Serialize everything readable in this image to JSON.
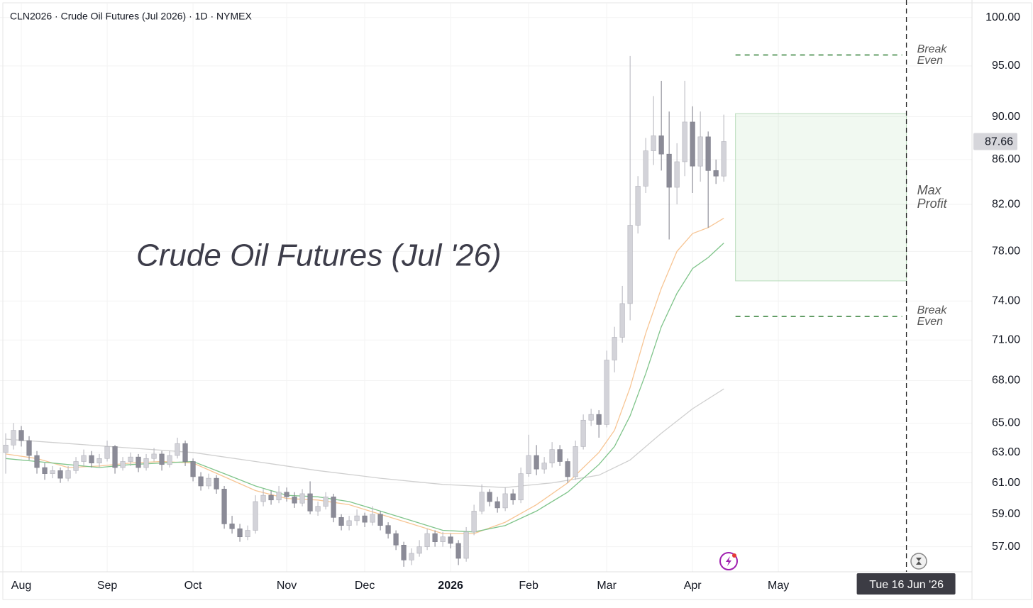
{
  "chart_data": {
    "type": "candlestick",
    "title": "CLN2026 · Crude Oil Futures (Jul 2026) · 1D · NYMEX",
    "watermark": "Crude Oil Futures (Jul '26)",
    "log_scale": true,
    "grid": true,
    "up_color": "#d3d3d9",
    "down_color": "#8b8b97",
    "ylim": [
      55.5,
      101.5
    ],
    "yticks": [
      {
        "value": 57,
        "label": "57.00"
      },
      {
        "value": 59,
        "label": "59.00"
      },
      {
        "value": 61,
        "label": "61.00"
      },
      {
        "value": 63,
        "label": "63.00"
      },
      {
        "value": 65,
        "label": "65.00"
      },
      {
        "value": 68,
        "label": "68.00"
      },
      {
        "value": 71,
        "label": "71.00"
      },
      {
        "value": 74,
        "label": "74.00"
      },
      {
        "value": 78,
        "label": "78.00"
      },
      {
        "value": 82,
        "label": "82.00"
      },
      {
        "value": 86,
        "label": "86.00"
      },
      {
        "value": 90,
        "label": "90.00"
      },
      {
        "value": 95,
        "label": "95.00"
      },
      {
        "value": 100,
        "label": "100.00"
      }
    ],
    "xlim": [
      -0.73,
      123.8
    ],
    "xticks": [
      {
        "value": 2,
        "label": "Aug"
      },
      {
        "value": 13,
        "label": "Sep"
      },
      {
        "value": 24,
        "label": "Oct"
      },
      {
        "value": 36,
        "label": "Nov"
      },
      {
        "value": 46,
        "label": "Dec"
      },
      {
        "value": 57,
        "label": "2026"
      },
      {
        "value": 67,
        "label": "Feb"
      },
      {
        "value": 77,
        "label": "Mar"
      },
      {
        "value": 88,
        "label": "Apr"
      },
      {
        "value": 99,
        "label": "May"
      }
    ],
    "values": [
      [
        63.0,
        64.3,
        61.6,
        63.5
      ],
      [
        63.5,
        65.0,
        63.2,
        64.5
      ],
      [
        64.5,
        64.8,
        63.4,
        63.8
      ],
      [
        63.8,
        64.1,
        62.5,
        62.8
      ],
      [
        62.8,
        63.1,
        61.6,
        62.0
      ],
      [
        62.0,
        62.3,
        61.2,
        61.6
      ],
      [
        61.6,
        62.1,
        61.3,
        61.8
      ],
      [
        61.8,
        62.0,
        61.0,
        61.3
      ],
      [
        61.3,
        62.1,
        61.1,
        61.8
      ],
      [
        61.8,
        62.7,
        61.6,
        62.4
      ],
      [
        62.4,
        63.2,
        62.1,
        62.8
      ],
      [
        62.8,
        63.1,
        62.0,
        62.3
      ],
      [
        62.3,
        62.9,
        62.0,
        62.6
      ],
      [
        62.6,
        63.8,
        62.4,
        63.4
      ],
      [
        63.4,
        63.5,
        61.6,
        62.0
      ],
      [
        62.0,
        62.7,
        61.8,
        62.4
      ],
      [
        62.4,
        63.0,
        62.1,
        62.7
      ],
      [
        62.7,
        62.9,
        61.7,
        62.0
      ],
      [
        62.0,
        62.9,
        61.8,
        62.6
      ],
      [
        62.6,
        63.3,
        62.4,
        62.9
      ],
      [
        62.9,
        63.1,
        61.8,
        62.2
      ],
      [
        62.2,
        63.1,
        62.0,
        62.8
      ],
      [
        62.8,
        64.0,
        62.6,
        63.6
      ],
      [
        63.6,
        63.8,
        62.1,
        62.4
      ],
      [
        62.4,
        62.6,
        61.1,
        61.4
      ],
      [
        61.4,
        61.7,
        60.5,
        60.8
      ],
      [
        60.8,
        61.6,
        60.6,
        61.3
      ],
      [
        61.3,
        61.5,
        60.3,
        60.6
      ],
      [
        60.6,
        60.8,
        58.1,
        58.4
      ],
      [
        58.4,
        58.9,
        57.8,
        58.1
      ],
      [
        58.1,
        58.4,
        57.3,
        57.6
      ],
      [
        57.6,
        58.3,
        57.4,
        58.0
      ],
      [
        58.0,
        60.2,
        57.8,
        59.8
      ],
      [
        59.8,
        60.6,
        59.5,
        60.2
      ],
      [
        60.2,
        60.5,
        59.6,
        59.9
      ],
      [
        59.9,
        60.8,
        59.7,
        60.4
      ],
      [
        60.4,
        60.7,
        59.8,
        60.1
      ],
      [
        60.1,
        60.4,
        59.4,
        59.7
      ],
      [
        59.7,
        60.6,
        59.5,
        60.3
      ],
      [
        60.3,
        61.1,
        59.0,
        59.2
      ],
      [
        59.2,
        59.8,
        58.9,
        59.5
      ],
      [
        59.5,
        60.4,
        59.3,
        60.1
      ],
      [
        60.1,
        60.3,
        58.5,
        58.8
      ],
      [
        58.8,
        59.0,
        58.0,
        58.3
      ],
      [
        58.3,
        58.9,
        58.0,
        58.6
      ],
      [
        58.6,
        59.3,
        58.3,
        58.9
      ],
      [
        58.9,
        59.1,
        58.2,
        58.5
      ],
      [
        58.5,
        59.5,
        58.3,
        59.0
      ],
      [
        59.0,
        59.2,
        58.0,
        58.3
      ],
      [
        58.3,
        58.5,
        57.5,
        57.8
      ],
      [
        57.8,
        58.0,
        56.8,
        57.1
      ],
      [
        57.1,
        57.3,
        55.8,
        56.2
      ],
      [
        56.2,
        56.9,
        55.9,
        56.6
      ],
      [
        56.6,
        57.4,
        56.4,
        57.0
      ],
      [
        57.0,
        58.1,
        56.8,
        57.8
      ],
      [
        57.8,
        58.0,
        57.0,
        57.3
      ],
      [
        57.3,
        57.9,
        57.0,
        57.6
      ],
      [
        57.6,
        57.8,
        56.9,
        57.2
      ],
      [
        57.2,
        57.4,
        55.9,
        56.3
      ],
      [
        56.3,
        58.2,
        56.1,
        57.9
      ],
      [
        57.9,
        59.6,
        57.7,
        59.2
      ],
      [
        59.2,
        60.9,
        59.0,
        60.4
      ],
      [
        60.4,
        60.6,
        59.5,
        59.8
      ],
      [
        59.8,
        60.1,
        59.1,
        59.4
      ],
      [
        59.4,
        60.7,
        59.2,
        60.3
      ],
      [
        60.3,
        60.6,
        59.6,
        59.9
      ],
      [
        59.9,
        62.0,
        59.7,
        61.6
      ],
      [
        61.6,
        64.2,
        61.4,
        62.8
      ],
      [
        62.8,
        63.5,
        61.5,
        61.9
      ],
      [
        61.9,
        62.7,
        61.6,
        62.3
      ],
      [
        62.3,
        63.7,
        62.0,
        63.2
      ],
      [
        63.2,
        63.5,
        62.1,
        62.4
      ],
      [
        62.4,
        62.6,
        61.0,
        61.4
      ],
      [
        61.4,
        63.8,
        61.2,
        63.4
      ],
      [
        63.4,
        65.6,
        63.2,
        65.2
      ],
      [
        65.2,
        66.0,
        64.8,
        65.6
      ],
      [
        65.6,
        65.9,
        64.0,
        64.9
      ],
      [
        64.9,
        70.2,
        64.7,
        69.5
      ],
      [
        69.5,
        72.0,
        68.6,
        71.2
      ],
      [
        71.2,
        75.2,
        70.8,
        73.8
      ],
      [
        73.8,
        96.0,
        72.5,
        80.2
      ],
      [
        80.2,
        84.5,
        79.5,
        83.6
      ],
      [
        83.6,
        88.0,
        83.0,
        86.8
      ],
      [
        86.8,
        92.0,
        85.5,
        88.2
      ],
      [
        88.2,
        93.5,
        85.0,
        86.5
      ],
      [
        86.5,
        90.5,
        79.0,
        83.5
      ],
      [
        83.5,
        87.5,
        82.0,
        85.8
      ],
      [
        85.8,
        93.5,
        84.5,
        89.5
      ],
      [
        89.5,
        91.0,
        83.0,
        85.4
      ],
      [
        85.4,
        90.5,
        84.0,
        88.1
      ],
      [
        88.1,
        88.6,
        80.0,
        85.0
      ],
      [
        85.0,
        86.0,
        83.8,
        84.5
      ],
      [
        84.5,
        90.2,
        84.0,
        87.66
      ]
    ],
    "series": [
      {
        "color": "#cfcfcf",
        "x": [
          0,
          8,
          16,
          24,
          32,
          40,
          48,
          56,
          64,
          70,
          76,
          80,
          84,
          88,
          92
        ],
        "values": [
          63.9,
          63.6,
          63.3,
          63.0,
          62.4,
          61.8,
          61.3,
          60.9,
          60.7,
          61.0,
          61.5,
          62.5,
          64.3,
          66.0,
          67.4
        ]
      },
      {
        "color": "#f7c594",
        "x": [
          0,
          4,
          8,
          12,
          16,
          20,
          24,
          28,
          32,
          36,
          40,
          44,
          48,
          52,
          56,
          60,
          64,
          68,
          72,
          76,
          78,
          80,
          82,
          84,
          86,
          88,
          90,
          92
        ],
        "values": [
          62.9,
          62.6,
          62.0,
          62.1,
          62.3,
          62.4,
          62.3,
          61.4,
          60.5,
          60.0,
          59.9,
          59.6,
          59.0,
          58.4,
          57.8,
          57.8,
          58.5,
          59.6,
          61.0,
          63.0,
          64.5,
          67.5,
          71.5,
          75.0,
          78.0,
          79.5,
          80.0,
          80.8
        ]
      },
      {
        "color": "#7fc48a",
        "x": [
          0,
          4,
          8,
          12,
          16,
          20,
          24,
          28,
          32,
          36,
          40,
          44,
          48,
          52,
          56,
          60,
          64,
          68,
          72,
          76,
          78,
          80,
          82,
          84,
          86,
          88,
          90,
          92
        ],
        "values": [
          62.6,
          62.4,
          62.2,
          62.0,
          62.2,
          62.3,
          62.4,
          61.6,
          60.8,
          60.2,
          60.1,
          59.8,
          59.2,
          58.6,
          58.0,
          57.9,
          58.3,
          59.2,
          60.4,
          62.2,
          63.4,
          65.5,
          68.5,
          72.0,
          74.6,
          76.6,
          77.5,
          78.7
        ]
      }
    ],
    "annotations": [
      {
        "label": "Break Even",
        "value": 96.1
      },
      {
        "label": "Break Even",
        "value": 72.8
      },
      {
        "label": "Max Profit",
        "range": [
          75.6,
          90.3
        ]
      }
    ],
    "zone_x": [
      93.5,
      115.4
    ],
    "crosshair": {
      "x": 115.4,
      "label": "Tue 16 Jun '26"
    }
  }
}
